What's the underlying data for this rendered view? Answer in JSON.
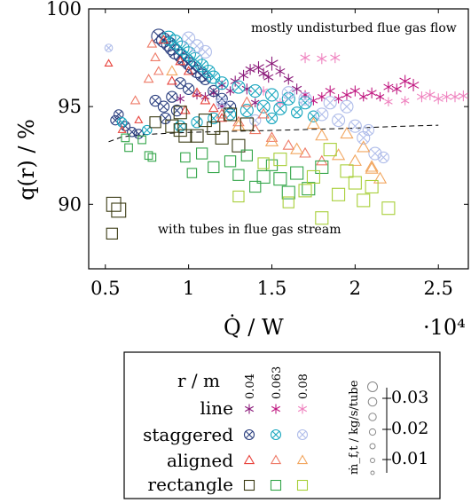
{
  "chart_data": {
    "type": "scatter",
    "xlabel": "Q̇ / W",
    "ylabel": "q(r) / %",
    "x_multiplier": "·10⁴",
    "xlim": [
      0.4,
      2.68
    ],
    "ylim": [
      86.7,
      100
    ],
    "x_ticks": [
      "0.5",
      "1",
      "1.5",
      "2",
      "2.5"
    ],
    "y_ticks": [
      "90",
      "95",
      "100"
    ],
    "x_tick_values": [
      0.5,
      1.0,
      1.5,
      2.0,
      2.5
    ],
    "y_tick_values": [
      90,
      95,
      100
    ],
    "annotations": [
      "mostly undisturbed flue gas flow",
      "with tubes in flue gas stream"
    ],
    "dashed_curve": {
      "x": [
        0.52,
        0.6,
        0.7,
        0.8,
        1.0,
        1.2,
        1.5,
        1.8,
        2.0,
        2.2,
        2.5
      ],
      "y": [
        93.2,
        93.45,
        93.55,
        93.6,
        93.68,
        93.72,
        93.78,
        93.85,
        93.9,
        93.97,
        94.05
      ]
    },
    "legend": {
      "r_title": "r / m",
      "r_values": [
        "0.04",
        "0.063",
        "0.08"
      ],
      "rows": [
        "line",
        "staggered",
        "aligned",
        "rectangle"
      ],
      "size_title": "ṁ_f,t / kg/s/tube",
      "size_ticks": [
        "0.03",
        "0.02",
        "0.01"
      ]
    },
    "colors": {
      "line": [
        "#8b1a7a",
        "#c01880",
        "#ef82bf"
      ],
      "staggered": [
        "#2b3f7f",
        "#1aa7bf",
        "#b0bdea"
      ],
      "aligned": [
        "#e8413a",
        "#ee7a67",
        "#f2a65f"
      ],
      "rectangle": [
        "#3b3b14",
        "#34a64a",
        "#a8cf39"
      ]
    },
    "series": [
      {
        "group": "line",
        "r": "0.04",
        "points": [
          [
            1.37,
            96.9,
            0.02
          ],
          [
            1.42,
            97.0,
            0.025
          ],
          [
            1.45,
            96.7,
            0.02
          ],
          [
            1.5,
            97.2,
            0.03
          ],
          [
            1.55,
            96.8,
            0.02
          ],
          [
            1.33,
            96.6,
            0.02
          ],
          [
            1.48,
            96.5,
            0.02
          ],
          [
            1.2,
            96.1,
            0.015
          ],
          [
            1.28,
            96.3,
            0.02
          ],
          [
            1.6,
            96.4,
            0.02
          ],
          [
            1.25,
            95.8,
            0.015
          ],
          [
            1.35,
            95.9,
            0.02
          ],
          [
            1.1,
            95.5,
            0.015
          ],
          [
            1.15,
            95.7,
            0.015
          ],
          [
            1.65,
            95.9,
            0.02
          ],
          [
            1.4,
            95.2,
            0.015
          ],
          [
            1.2,
            95.0,
            0.015
          ],
          [
            1.05,
            95.6,
            0.015
          ],
          [
            0.95,
            95.4,
            0.015
          ]
        ]
      },
      {
        "group": "line",
        "r": "0.063",
        "points": [
          [
            2.3,
            96.3,
            0.025
          ],
          [
            2.25,
            95.9,
            0.02
          ],
          [
            2.35,
            96.1,
            0.025
          ],
          [
            2.2,
            96.0,
            0.02
          ],
          [
            2.1,
            95.7,
            0.02
          ],
          [
            2.0,
            95.8,
            0.02
          ],
          [
            2.05,
            95.5,
            0.015
          ],
          [
            1.95,
            95.6,
            0.02
          ],
          [
            1.9,
            95.4,
            0.015
          ],
          [
            1.85,
            95.8,
            0.02
          ],
          [
            1.8,
            95.5,
            0.015
          ],
          [
            1.7,
            95.6,
            0.015
          ],
          [
            1.75,
            95.3,
            0.015
          ],
          [
            2.15,
            95.5,
            0.015
          ]
        ]
      },
      {
        "group": "line",
        "r": "0.08",
        "points": [
          [
            1.7,
            97.5,
            0.02
          ],
          [
            1.8,
            97.45,
            0.02
          ],
          [
            1.88,
            97.5,
            0.02
          ],
          [
            2.45,
            95.6,
            0.02
          ],
          [
            2.55,
            95.5,
            0.02
          ],
          [
            2.6,
            95.5,
            0.02
          ],
          [
            2.65,
            95.55,
            0.02
          ],
          [
            2.5,
            95.4,
            0.02
          ],
          [
            2.4,
            95.5,
            0.02
          ],
          [
            2.3,
            95.3,
            0.015
          ],
          [
            2.2,
            95.25,
            0.015
          ],
          [
            1.45,
            95.8,
            0.015
          ],
          [
            1.55,
            95.2,
            0.015
          ]
        ]
      },
      {
        "group": "staggered",
        "r": "0.04",
        "points": [
          [
            0.82,
            98.6,
            0.03
          ],
          [
            0.85,
            98.4,
            0.03
          ],
          [
            0.88,
            98.2,
            0.03
          ],
          [
            0.9,
            98.0,
            0.03
          ],
          [
            0.92,
            97.8,
            0.03
          ],
          [
            0.95,
            97.6,
            0.025
          ],
          [
            0.97,
            97.4,
            0.025
          ],
          [
            1.0,
            97.2,
            0.025
          ],
          [
            1.02,
            97.0,
            0.025
          ],
          [
            1.05,
            96.8,
            0.025
          ],
          [
            1.08,
            96.6,
            0.025
          ],
          [
            1.1,
            96.4,
            0.02
          ],
          [
            0.95,
            96.2,
            0.02
          ],
          [
            1.0,
            95.9,
            0.02
          ],
          [
            0.9,
            95.5,
            0.02
          ],
          [
            0.85,
            95.0,
            0.02
          ],
          [
            0.8,
            95.3,
            0.02
          ],
          [
            0.58,
            94.6,
            0.015
          ],
          [
            0.56,
            94.3,
            0.015
          ],
          [
            0.62,
            94.0,
            0.015
          ],
          [
            0.66,
            93.7,
            0.015
          ],
          [
            0.7,
            93.6,
            0.015
          ],
          [
            1.15,
            95.8,
            0.02
          ],
          [
            1.2,
            95.4,
            0.02
          ],
          [
            1.25,
            95.0,
            0.02
          ],
          [
            0.93,
            94.8,
            0.02
          ],
          [
            0.86,
            94.4,
            0.02
          ]
        ]
      },
      {
        "group": "staggered",
        "r": "0.063",
        "points": [
          [
            0.88,
            98.5,
            0.03
          ],
          [
            0.92,
            98.3,
            0.03
          ],
          [
            0.96,
            98.0,
            0.03
          ],
          [
            1.0,
            97.7,
            0.03
          ],
          [
            1.04,
            97.4,
            0.03
          ],
          [
            1.08,
            97.1,
            0.025
          ],
          [
            1.12,
            96.8,
            0.025
          ],
          [
            1.15,
            96.5,
            0.025
          ],
          [
            1.2,
            96.2,
            0.025
          ],
          [
            1.3,
            96.0,
            0.025
          ],
          [
            1.4,
            95.8,
            0.025
          ],
          [
            1.5,
            95.6,
            0.025
          ],
          [
            1.6,
            95.4,
            0.025
          ],
          [
            1.7,
            95.2,
            0.025
          ],
          [
            1.45,
            95.0,
            0.025
          ],
          [
            1.35,
            94.8,
            0.025
          ],
          [
            1.55,
            94.9,
            0.025
          ],
          [
            1.65,
            94.7,
            0.02
          ],
          [
            1.25,
            94.6,
            0.02
          ],
          [
            1.15,
            94.4,
            0.02
          ],
          [
            1.05,
            94.2,
            0.02
          ],
          [
            0.95,
            94.0,
            0.02
          ],
          [
            0.75,
            93.8,
            0.015
          ],
          [
            0.6,
            94.2,
            0.015
          ],
          [
            1.5,
            94.4,
            0.02
          ],
          [
            1.75,
            94.5,
            0.02
          ]
        ]
      },
      {
        "group": "staggered",
        "r": "0.08",
        "points": [
          [
            1.0,
            98.5,
            0.025
          ],
          [
            1.05,
            98.1,
            0.025
          ],
          [
            1.1,
            97.8,
            0.025
          ],
          [
            1.6,
            95.7,
            0.025
          ],
          [
            1.7,
            95.4,
            0.025
          ],
          [
            1.85,
            95.2,
            0.025
          ],
          [
            1.95,
            95.0,
            0.025
          ],
          [
            2.05,
            93.4,
            0.025
          ],
          [
            2.12,
            92.6,
            0.025
          ],
          [
            2.17,
            92.4,
            0.02
          ],
          [
            1.8,
            94.6,
            0.025
          ],
          [
            1.9,
            94.3,
            0.025
          ],
          [
            2.0,
            94.0,
            0.025
          ],
          [
            2.08,
            93.8,
            0.02
          ],
          [
            0.52,
            98.0,
            0.01
          ],
          [
            1.4,
            94.3,
            0.02
          ],
          [
            1.2,
            95.2,
            0.02
          ]
        ]
      },
      {
        "group": "aligned",
        "r": "0.04",
        "points": [
          [
            0.85,
            98.4,
            0.015
          ],
          [
            0.95,
            97.3,
            0.015
          ],
          [
            1.0,
            96.8,
            0.015
          ],
          [
            0.9,
            96.3,
            0.015
          ],
          [
            1.05,
            95.7,
            0.015
          ],
          [
            1.1,
            95.3,
            0.015
          ],
          [
            0.98,
            94.8,
            0.015
          ],
          [
            1.15,
            94.9,
            0.015
          ],
          [
            0.7,
            94.3,
            0.01
          ],
          [
            0.6,
            93.8,
            0.01
          ],
          [
            0.52,
            97.2,
            0.01
          ],
          [
            1.2,
            94.4,
            0.015
          ]
        ]
      },
      {
        "group": "aligned",
        "r": "0.063",
        "points": [
          [
            0.78,
            98.2,
            0.015
          ],
          [
            0.8,
            97.5,
            0.015
          ],
          [
            0.82,
            96.8,
            0.015
          ],
          [
            0.76,
            96.4,
            0.015
          ],
          [
            0.68,
            95.3,
            0.015
          ],
          [
            1.2,
            94.6,
            0.02
          ],
          [
            1.3,
            94.2,
            0.02
          ],
          [
            1.4,
            93.8,
            0.02
          ],
          [
            1.5,
            93.4,
            0.02
          ],
          [
            1.6,
            93.0,
            0.02
          ],
          [
            1.7,
            92.6,
            0.02
          ],
          [
            1.8,
            92.2,
            0.02
          ],
          [
            1.45,
            94.6,
            0.02
          ],
          [
            1.35,
            95.2,
            0.02
          ]
        ]
      },
      {
        "group": "aligned",
        "r": "0.08",
        "points": [
          [
            0.9,
            96.8,
            0.02
          ],
          [
            1.3,
            94.0,
            0.025
          ],
          [
            1.5,
            93.2,
            0.025
          ],
          [
            1.65,
            92.8,
            0.025
          ],
          [
            1.8,
            93.5,
            0.025
          ],
          [
            1.9,
            92.5,
            0.025
          ],
          [
            2.0,
            92.2,
            0.025
          ],
          [
            2.1,
            91.8,
            0.025
          ],
          [
            2.15,
            91.3,
            0.025
          ],
          [
            2.05,
            92.9,
            0.025
          ],
          [
            1.75,
            94.1,
            0.025
          ],
          [
            1.95,
            93.6,
            0.025
          ],
          [
            2.1,
            91.9,
            0.025
          ]
        ]
      },
      {
        "group": "rectangle",
        "r": "0.04",
        "points": [
          [
            0.55,
            90.0,
            0.03
          ],
          [
            0.58,
            89.7,
            0.03
          ],
          [
            0.54,
            88.5,
            0.02
          ],
          [
            0.95,
            93.8,
            0.025
          ],
          [
            1.05,
            93.5,
            0.025
          ],
          [
            1.1,
            94.3,
            0.025
          ],
          [
            1.2,
            93.4,
            0.025
          ],
          [
            1.25,
            94.6,
            0.025
          ],
          [
            1.3,
            93.0,
            0.025
          ],
          [
            0.95,
            94.7,
            0.025
          ],
          [
            0.9,
            94.0,
            0.025
          ],
          [
            1.15,
            93.9,
            0.025
          ],
          [
            1.35,
            94.1,
            0.025
          ],
          [
            0.98,
            93.5,
            0.025
          ],
          [
            0.8,
            94.2,
            0.02
          ]
        ]
      },
      {
        "group": "rectangle",
        "r": "0.063",
        "points": [
          [
            0.62,
            93.4,
            0.01
          ],
          [
            0.64,
            92.9,
            0.01
          ],
          [
            0.72,
            93.3,
            0.01
          ],
          [
            0.76,
            92.5,
            0.01
          ],
          [
            0.78,
            92.4,
            0.01
          ],
          [
            0.98,
            92.4,
            0.015
          ],
          [
            1.02,
            91.6,
            0.015
          ],
          [
            1.08,
            92.6,
            0.02
          ],
          [
            1.15,
            91.9,
            0.02
          ],
          [
            1.25,
            92.2,
            0.02
          ],
          [
            1.3,
            91.5,
            0.02
          ],
          [
            1.35,
            92.5,
            0.02
          ],
          [
            1.45,
            91.4,
            0.025
          ],
          [
            1.55,
            91.3,
            0.025
          ],
          [
            1.65,
            91.6,
            0.025
          ],
          [
            1.72,
            90.8,
            0.025
          ],
          [
            1.8,
            91.9,
            0.025
          ],
          [
            1.6,
            90.6,
            0.025
          ],
          [
            1.5,
            92.0,
            0.02
          ],
          [
            1.4,
            90.9,
            0.02
          ]
        ]
      },
      {
        "group": "rectangle",
        "r": "0.08",
        "points": [
          [
            1.55,
            92.3,
            0.025
          ],
          [
            1.7,
            90.7,
            0.025
          ],
          [
            1.8,
            89.3,
            0.025
          ],
          [
            1.9,
            90.5,
            0.025
          ],
          [
            2.0,
            91.1,
            0.025
          ],
          [
            2.05,
            90.2,
            0.025
          ],
          [
            2.2,
            89.8,
            0.025
          ],
          [
            1.95,
            91.7,
            0.025
          ],
          [
            1.85,
            92.8,
            0.025
          ],
          [
            1.6,
            90.1,
            0.02
          ],
          [
            1.75,
            91.4,
            0.025
          ],
          [
            2.1,
            90.9,
            0.025
          ],
          [
            1.3,
            90.4,
            0.02
          ],
          [
            1.45,
            92.1,
            0.02
          ]
        ]
      }
    ]
  }
}
